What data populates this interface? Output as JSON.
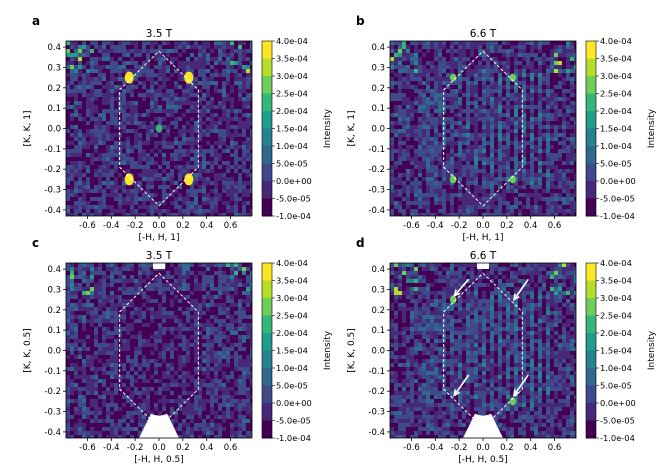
{
  "chart_data": [
    {
      "type": "heatmap",
      "panel_label": "a",
      "title": "3.5 T",
      "xlabel": "[-H, H, 1]",
      "ylabel": "[K, K, 1]",
      "xlim": [
        -0.78,
        0.78
      ],
      "ylim": [
        -0.43,
        0.43
      ],
      "xticks": [
        "-0.6",
        "-0.4",
        "-0.2",
        "0.0",
        "0.2",
        "0.4",
        "0.6"
      ],
      "yticks": [
        "0.4",
        "0.3",
        "0.2",
        "0.1",
        "0.0",
        "-0.1",
        "-0.2",
        "-0.3",
        "-0.4"
      ],
      "colorbar": {
        "label": "Intensity",
        "range": [
          -0.0001,
          0.0004
        ],
        "ticks": [
          "4.0e-04",
          "3.5e-04",
          "3.0e-04",
          "2.5e-04",
          "2.0e-04",
          "1.5e-04",
          "1.0e-04",
          "5.0e-05",
          "0.0e+00",
          "-5.0e-05",
          "-1.0e-04"
        ]
      },
      "peaks": [
        {
          "x": -0.25,
          "y": 0.25,
          "intensity": 0.0004
        },
        {
          "x": 0.25,
          "y": 0.25,
          "intensity": 0.0004
        },
        {
          "x": -0.25,
          "y": -0.25,
          "intensity": 0.0004
        },
        {
          "x": 0.25,
          "y": -0.25,
          "intensity": 0.0004
        },
        {
          "x": 0.0,
          "y": 0.0,
          "intensity": 0.0002
        }
      ],
      "stripes": false,
      "hexagon": true,
      "arrows": false
    },
    {
      "type": "heatmap",
      "panel_label": "b",
      "title": "6.6 T",
      "xlabel": "[-H, H, 1]",
      "ylabel": "[K, K, 1]",
      "xlim": [
        -0.78,
        0.78
      ],
      "ylim": [
        -0.43,
        0.43
      ],
      "xticks": [
        "-0.6",
        "-0.4",
        "-0.2",
        "0.0",
        "0.2",
        "0.4",
        "0.6"
      ],
      "yticks": [
        "0.4",
        "0.3",
        "0.2",
        "0.1",
        "0.0",
        "-0.1",
        "-0.2",
        "-0.3",
        "-0.4"
      ],
      "colorbar": {
        "label": "Intensity",
        "range": [
          -0.0001,
          0.0004
        ],
        "ticks": [
          "4.0e-04",
          "3.5e-04",
          "3.0e-04",
          "2.5e-04",
          "2.0e-04",
          "1.5e-04",
          "1.0e-04",
          "5.0e-05",
          "0.0e+00",
          "-5.0e-05",
          "-1.0e-04"
        ]
      },
      "peaks": [
        {
          "x": -0.25,
          "y": 0.25,
          "intensity": 0.0003
        },
        {
          "x": 0.25,
          "y": 0.25,
          "intensity": 0.0003
        },
        {
          "x": -0.25,
          "y": -0.25,
          "intensity": 0.0003
        },
        {
          "x": 0.25,
          "y": -0.25,
          "intensity": 0.0003
        }
      ],
      "stripes": true,
      "hexagon": true,
      "arrows": false
    },
    {
      "type": "heatmap",
      "panel_label": "c",
      "title": "3.5 T",
      "xlabel": "[-H, H, 0.5]",
      "ylabel": "[K, K, 0.5]",
      "xlim": [
        -0.78,
        0.78
      ],
      "ylim": [
        -0.43,
        0.43
      ],
      "xticks": [
        "-0.6",
        "-0.4",
        "-0.2",
        "0.0",
        "0.2",
        "0.4",
        "0.6"
      ],
      "yticks": [
        "0.4",
        "0.3",
        "0.2",
        "0.1",
        "0.0",
        "-0.1",
        "-0.2",
        "-0.3",
        "-0.4"
      ],
      "colorbar": {
        "label": "Intensity",
        "range": [
          -0.0001,
          0.0004
        ],
        "ticks": [
          "4.0e-04",
          "3.5e-04",
          "3.0e-04",
          "2.5e-04",
          "2.0e-04",
          "1.5e-04",
          "1.0e-04",
          "5.0e-05",
          "0.0e+00",
          "-5.0e-05",
          "-1.0e-04"
        ]
      },
      "peaks": [],
      "stripes": false,
      "hexagon": true,
      "arrows": false
    },
    {
      "type": "heatmap",
      "panel_label": "d",
      "title": "6.6 T",
      "xlabel": "[-H, H, 0.5]",
      "ylabel": "[K, K, 0.5]",
      "xlim": [
        -0.78,
        0.78
      ],
      "ylim": [
        -0.43,
        0.43
      ],
      "xticks": [
        "-0.6",
        "-0.4",
        "-0.2",
        "0.0",
        "0.2",
        "0.4",
        "0.6"
      ],
      "yticks": [
        "0.4",
        "0.3",
        "0.2",
        "0.1",
        "0.0",
        "-0.1",
        "-0.2",
        "-0.3",
        "-0.4"
      ],
      "colorbar": {
        "label": "Intensity",
        "range": [
          -0.0001,
          0.0004
        ],
        "ticks": [
          "4.0e-04",
          "3.5e-04",
          "3.0e-04",
          "2.5e-04",
          "2.0e-04",
          "1.5e-04",
          "1.0e-04",
          "5.0e-05",
          "0.0e+00",
          "-5.0e-05",
          "-1.0e-04"
        ]
      },
      "peaks": [
        {
          "x": -0.25,
          "y": 0.25,
          "intensity": 0.00025
        },
        {
          "x": 0.25,
          "y": -0.25,
          "intensity": 0.00025
        }
      ],
      "stripes": true,
      "hexagon": true,
      "arrows": true
    }
  ],
  "colormap": [
    "#440154",
    "#482878",
    "#3e4a89",
    "#31688e",
    "#26828e",
    "#1f9e89",
    "#35b779",
    "#6ece58",
    "#b5de2b",
    "#fde725"
  ]
}
